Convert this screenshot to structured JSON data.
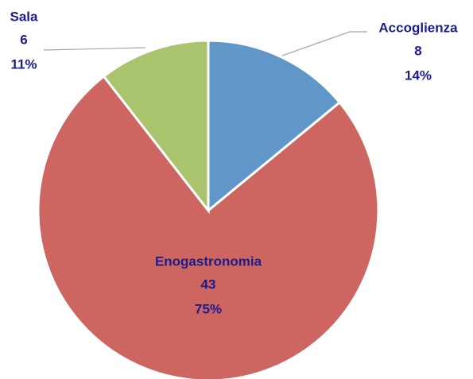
{
  "chart_data": {
    "type": "pie",
    "categories": [
      "Accoglienza",
      "Enogastronomia",
      "Sala"
    ],
    "values": [
      8,
      43,
      6
    ],
    "percent_labels": [
      "14%",
      "75%",
      "11%"
    ],
    "colors": [
      "#6096c8",
      "#cd6660",
      "#a9c46c"
    ]
  }
}
